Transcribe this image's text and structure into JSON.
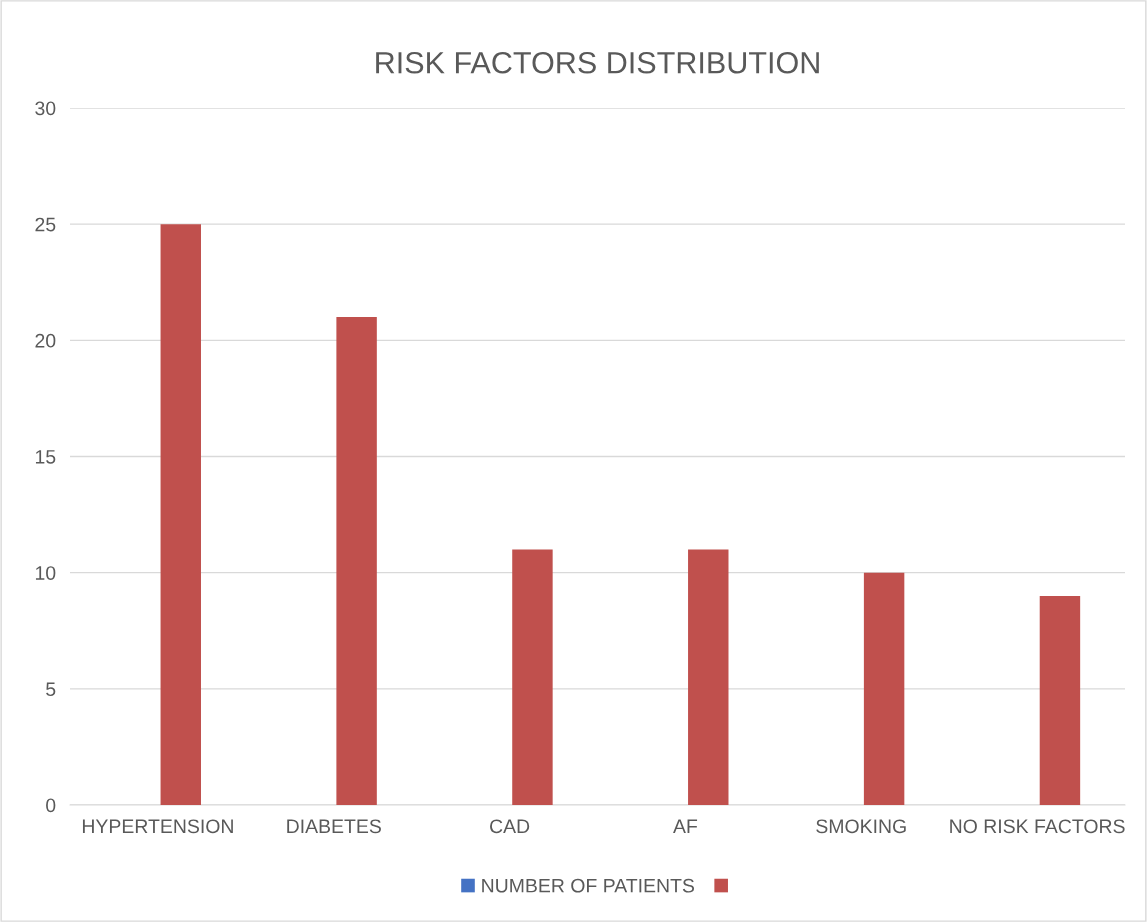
{
  "chart_data": {
    "type": "bar",
    "title": "RISK FACTORS DISTRIBUTION",
    "categories": [
      "HYPERTENSION",
      "DIABETES",
      "CAD",
      "AF",
      "SMOKING",
      "NO RISK FACTORS"
    ],
    "series": [
      {
        "name": "NUMBER OF PATIENTS",
        "color": "#4472c4",
        "values": [
          null,
          null,
          null,
          null,
          null,
          null
        ]
      },
      {
        "color": "#c0504d",
        "values": [
          25,
          21,
          11,
          11,
          10,
          9
        ]
      }
    ],
    "ylim": [
      0,
      30
    ],
    "yticks": [
      0,
      5,
      10,
      15,
      20,
      25,
      30
    ],
    "grid": "y",
    "legend": "bottom"
  }
}
